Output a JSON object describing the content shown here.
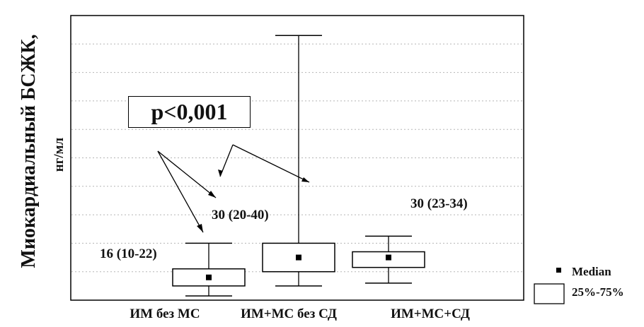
{
  "chart_data": {
    "type": "box",
    "ylabel_main": "Миокардиальный БСЖК,",
    "ylabel_unit": "нг/мл",
    "categories": [
      "ИМ без МС",
      "ИМ+МС без СД",
      "ИМ+МС+СД"
    ],
    "boxes": [
      {
        "name": "ИМ без МС",
        "median": 16,
        "q1": 10,
        "q3": 22,
        "min": 3,
        "max": 40
      },
      {
        "name": "ИМ+МС без СД",
        "median": 30,
        "q1": 20,
        "q3": 40,
        "min": 10,
        "max": 186
      },
      {
        "name": "ИМ+МС+СД",
        "median": 30,
        "q1": 23,
        "q3": 34,
        "min": 12,
        "max": 45
      }
    ],
    "annotations": [
      "16 (10-22)",
      "30 (20-40)",
      "30 (23-34)"
    ],
    "p_value_label": "p<0,001",
    "legend": [
      "Median",
      "25%-75%"
    ],
    "grid": true
  },
  "colors": {
    "stroke": "#000000",
    "grid": "#b5b5b5",
    "background": "#ffffff"
  }
}
